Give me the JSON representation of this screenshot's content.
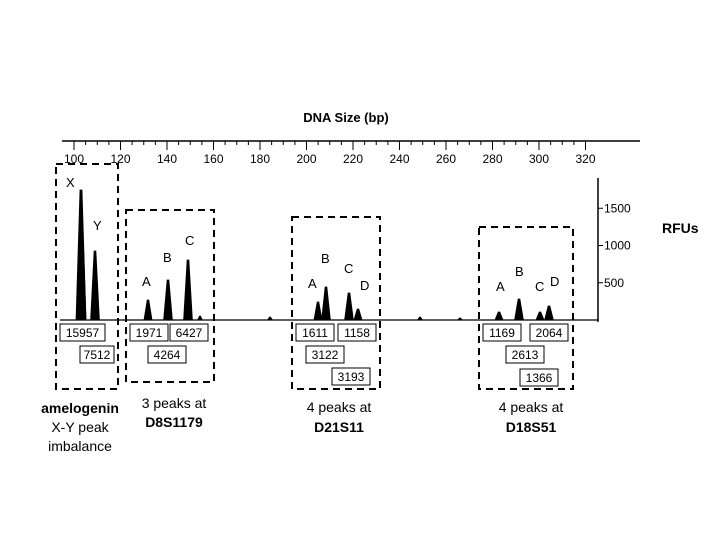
{
  "top_axis": {
    "title": "DNA Size (bp)",
    "ticks": [
      "100",
      "120",
      "140",
      "160",
      "180",
      "200",
      "220",
      "240",
      "260",
      "280",
      "300",
      "320"
    ]
  },
  "right_axis": {
    "title": "RFUs",
    "ticks": [
      "1500",
      "1000",
      "500"
    ]
  },
  "loci": {
    "amelogenin": {
      "peak_labels": [
        "X",
        "Y"
      ],
      "values": [
        "15957",
        "7512"
      ],
      "caption": [
        "amelogenin",
        "X-Y peak",
        "imbalance"
      ]
    },
    "d8s1179": {
      "peak_labels": [
        "A",
        "B",
        "C"
      ],
      "values": [
        "1971",
        "6427",
        "4264"
      ],
      "caption": [
        "3 peaks at",
        "D8S1179"
      ]
    },
    "d21s11": {
      "peak_labels": [
        "A",
        "B",
        "C",
        "D"
      ],
      "values": [
        "1611",
        "1158",
        "3122",
        "3193"
      ],
      "caption": [
        "4 peaks at",
        "D21S11"
      ]
    },
    "d18s51": {
      "peak_labels": [
        "A",
        "B",
        "C",
        "D"
      ],
      "values": [
        "1169",
        "2064",
        "2613",
        "1366"
      ],
      "caption": [
        "4 peaks at",
        "D18S51"
      ]
    }
  }
}
